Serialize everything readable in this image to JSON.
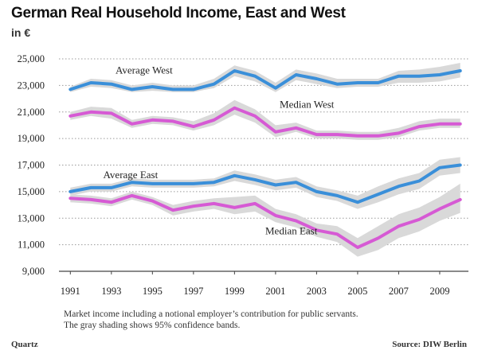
{
  "chart_data": {
    "type": "line",
    "title": "German Real Household Income, East and West",
    "ylabel": "in €",
    "xlabel": "",
    "x": [
      1991,
      1992,
      1993,
      1994,
      1995,
      1996,
      1997,
      1998,
      1999,
      2000,
      2001,
      2002,
      2003,
      2004,
      2005,
      2006,
      2007,
      2008,
      2009,
      2010
    ],
    "xticks": [
      1991,
      1993,
      1995,
      1997,
      1999,
      2001,
      2003,
      2005,
      2007,
      2009
    ],
    "ylim": [
      9000,
      25000
    ],
    "yticks": [
      9000,
      11000,
      13000,
      15000,
      17000,
      19000,
      21000,
      23000,
      25000
    ],
    "ytick_labels": [
      "9,000",
      "11,000",
      "13,000",
      "15,000",
      "17,000",
      "19,000",
      "21,000",
      "23,000",
      "25,000"
    ],
    "xlim": [
      1990.6,
      2010.4
    ],
    "grid": "horizontal dotted",
    "series": [
      {
        "name": "Average West",
        "color": "#3a8fd9",
        "values": [
          22700,
          23200,
          23100,
          22700,
          22900,
          22700,
          22700,
          23100,
          24100,
          23700,
          22800,
          23800,
          23500,
          23100,
          23200,
          23200,
          23700,
          23700,
          23800,
          24100
        ],
        "lower": [
          22500,
          22900,
          22800,
          22500,
          22600,
          22500,
          22500,
          22800,
          23700,
          23300,
          22500,
          23400,
          23100,
          22800,
          22900,
          22900,
          23200,
          23200,
          23300,
          23600
        ],
        "upper": [
          22900,
          23500,
          23400,
          23000,
          23200,
          23000,
          23000,
          23500,
          24500,
          24100,
          23200,
          24200,
          23900,
          23500,
          23500,
          23500,
          24100,
          24200,
          24400,
          24700
        ],
        "label_x": 1993.2,
        "label_y": 23900
      },
      {
        "name": "Median West",
        "color": "#d65ad4",
        "values": [
          20700,
          21000,
          20900,
          20100,
          20400,
          20300,
          19900,
          20400,
          21300,
          20700,
          19500,
          19800,
          19300,
          19300,
          19200,
          19200,
          19400,
          19900,
          20100,
          20100
        ],
        "lower": [
          20400,
          20700,
          20500,
          19800,
          20100,
          20000,
          19600,
          20000,
          20800,
          20200,
          19100,
          19500,
          19000,
          19000,
          18900,
          18900,
          19100,
          19600,
          19800,
          19800
        ],
        "upper": [
          21000,
          21400,
          21300,
          20400,
          20700,
          20600,
          20300,
          20900,
          21900,
          21200,
          20000,
          20200,
          19600,
          19600,
          19500,
          19500,
          19800,
          20300,
          20500,
          20500
        ],
        "label_x": 2001.2,
        "label_y": 21300
      },
      {
        "name": "Average East",
        "color": "#3a8fd9",
        "values": [
          15000,
          15300,
          15300,
          15700,
          15600,
          15600,
          15600,
          15700,
          16200,
          15900,
          15500,
          15700,
          15000,
          14700,
          14200,
          14800,
          15400,
          15800,
          16800,
          17000
        ],
        "lower": [
          14700,
          15000,
          15000,
          15400,
          15300,
          15300,
          15300,
          15400,
          15800,
          15500,
          15100,
          15300,
          14600,
          14300,
          13700,
          14200,
          14800,
          15200,
          16200,
          16400
        ],
        "upper": [
          15300,
          15600,
          15600,
          16000,
          15900,
          15900,
          15900,
          16000,
          16600,
          16300,
          15900,
          16100,
          15400,
          15100,
          14700,
          15400,
          16000,
          16400,
          17400,
          17600
        ],
        "label_x": 1992.6,
        "label_y": 16000
      },
      {
        "name": "Median East",
        "color": "#d65ad4",
        "values": [
          14500,
          14400,
          14200,
          14700,
          14300,
          13600,
          13900,
          14100,
          13800,
          14100,
          13200,
          12800,
          12100,
          11800,
          10800,
          11500,
          12400,
          12900,
          13700,
          14400
        ],
        "lower": [
          14200,
          14100,
          13900,
          14400,
          14000,
          13200,
          13500,
          13700,
          13300,
          13500,
          12700,
          12300,
          11600,
          11200,
          10100,
          10600,
          11500,
          12000,
          12800,
          13400
        ],
        "upper": [
          14800,
          14700,
          14500,
          15000,
          14600,
          14000,
          14300,
          14500,
          14600,
          14700,
          13700,
          13300,
          12600,
          12400,
          11500,
          12400,
          13300,
          13800,
          14600,
          15600
        ],
        "label_x": 2000.5,
        "label_y": 11800
      }
    ],
    "band_color": "#d9d9d9",
    "notes": [
      "Market income including a notional employer’s contribution for public servants.",
      "The gray shading shows 95% confidence bands."
    ],
    "brand": "Quartz",
    "source": "Source: DIW Berlin"
  }
}
